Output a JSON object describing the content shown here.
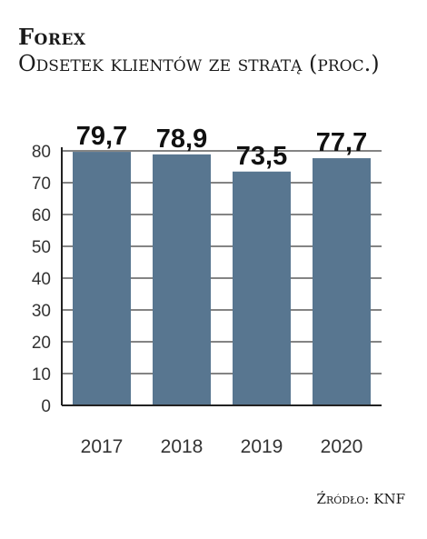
{
  "header": {
    "title": "Forex",
    "subtitle": "Odsetek klientów ze stratą (proc.)"
  },
  "footer": {
    "source": "Źródło: KNF"
  },
  "colors": {
    "bar": "#587690",
    "grid": "#3a3a3a",
    "axis": "#222222"
  },
  "chart_data": {
    "type": "bar",
    "title": "Forex",
    "subtitle": "Odsetek klientów ze stratą (proc.)",
    "categories": [
      "2017",
      "2018",
      "2019",
      "2020"
    ],
    "values": [
      79.7,
      78.9,
      73.5,
      77.7
    ],
    "value_labels": [
      "79,7",
      "78,9",
      "73,5",
      "77,7"
    ],
    "yticks": [
      0,
      10,
      20,
      30,
      40,
      50,
      60,
      70,
      80
    ],
    "ylim": [
      0,
      80
    ],
    "xlabel": "",
    "ylabel": "",
    "grid": true,
    "source": "Źródło: KNF"
  }
}
